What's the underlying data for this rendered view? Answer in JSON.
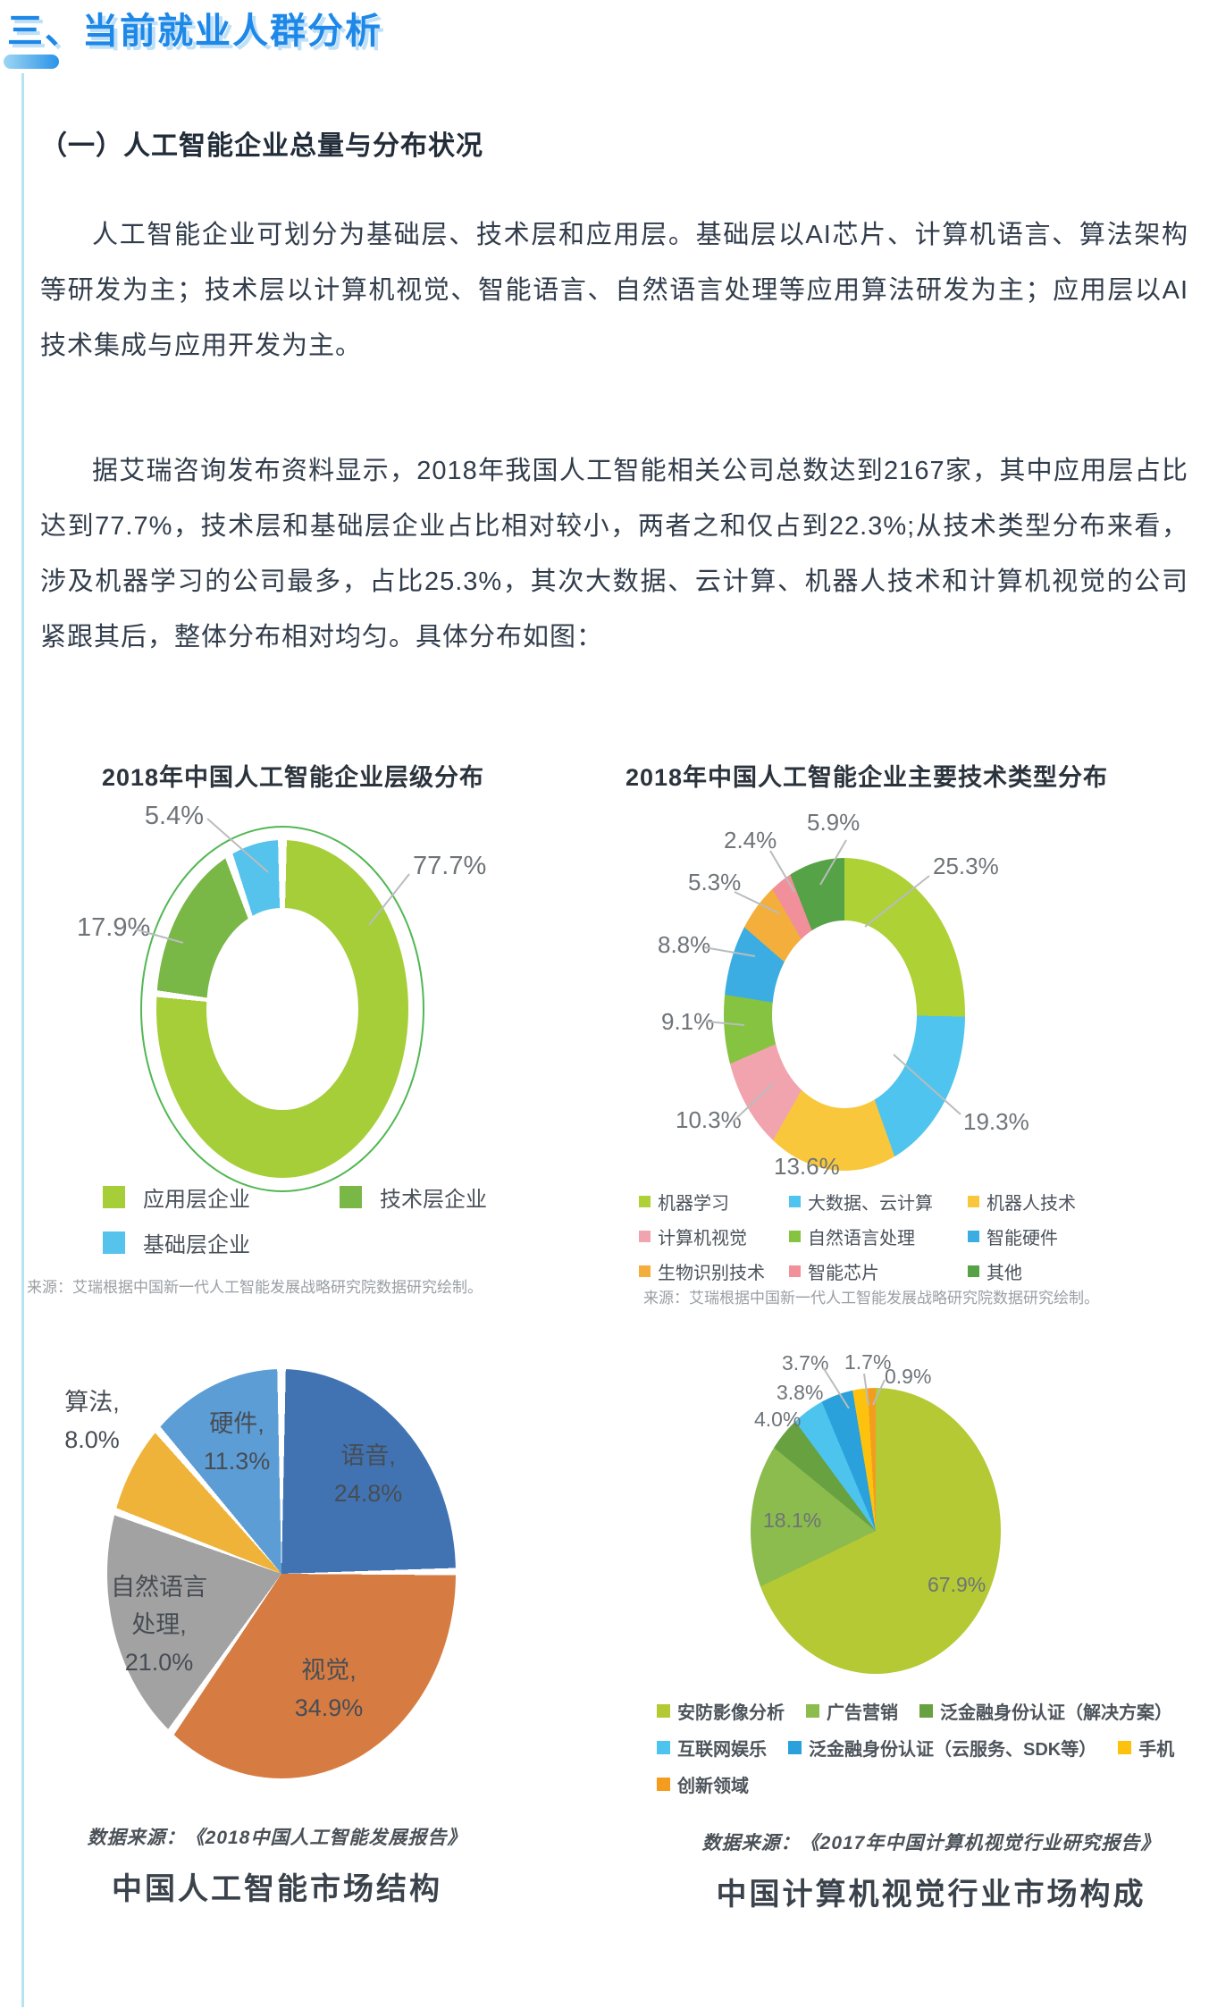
{
  "page": {
    "section_title": "三、当前就业人群分析",
    "subsection_title": "（一）人工智能企业总量与分布状况",
    "paragraphs": [
      "人工智能企业可划分为基础层、技术层和应用层。基础层以AI芯片、计算机语言、算法架构等研发为主；技术层以计算机视觉、智能语言、自然语言处理等应用算法研发为主；应用层以AI技术集成与应用开发为主。",
      "据艾瑞咨询发布资料显示，2018年我国人工智能相关公司总数达到2167家，其中应用层占比达到77.7%，技术层和基础层企业占比相对较小，两者之和仅占到22.3%;从技术类型分布来看，涉及机器学习的公司最多，占比25.3%，其次大数据、云计算、机器人技术和计算机视觉的公司紧跟其后，整体分布相对均匀。具体分布如图："
    ]
  },
  "chart_data": [
    {
      "type": "pie",
      "subtype": "donut",
      "title": "2018年中国人工智能企业层级分布",
      "legend_position": "bottom",
      "series": [
        {
          "label": "应用层企业",
          "value": 77.7,
          "pct": "77.7%",
          "color": "#a6ce39"
        },
        {
          "label": "技术层企业",
          "value": 17.9,
          "pct": "17.9%",
          "color": "#79b746"
        },
        {
          "label": "基础层企业",
          "value": 5.4,
          "pct": "5.4%",
          "color": "#55c3ec"
        }
      ],
      "source": "来源：艾瑞根据中国新一代人工智能发展战略研究院数据研究绘制。"
    },
    {
      "type": "pie",
      "subtype": "donut",
      "title": "2018年中国人工智能企业主要技术类型分布",
      "legend_position": "bottom",
      "series": [
        {
          "label": "机器学习",
          "value": 25.3,
          "pct": "25.3%",
          "color": "#aed136"
        },
        {
          "label": "大数据、云计算",
          "value": 19.3,
          "pct": "19.3%",
          "color": "#4fc4ee"
        },
        {
          "label": "机器人技术",
          "value": 13.6,
          "pct": "13.6%",
          "color": "#f9c73c"
        },
        {
          "label": "计算机视觉",
          "value": 10.3,
          "pct": "10.3%",
          "color": "#f2a4ae"
        },
        {
          "label": "自然语言处理",
          "value": 9.1,
          "pct": "9.1%",
          "color": "#85c341"
        },
        {
          "label": "智能硬件",
          "value": 8.8,
          "pct": "8.8%",
          "color": "#3bade3"
        },
        {
          "label": "生物识别技术",
          "value": 5.3,
          "pct": "5.3%",
          "color": "#f3ae3b"
        },
        {
          "label": "智能芯片",
          "value": 2.4,
          "pct": "2.4%",
          "color": "#f18f9b"
        },
        {
          "label": "其他",
          "value": 5.9,
          "pct": "5.9%",
          "color": "#55a346"
        }
      ],
      "source": "来源：艾瑞根据中国新一代人工智能发展战略研究院数据研究绘制。"
    },
    {
      "type": "pie",
      "subtype": "pie",
      "series": [
        {
          "label": "语音",
          "value": 24.8,
          "pct": "24.8%",
          "color": "#4173b3"
        },
        {
          "label": "视觉",
          "value": 34.9,
          "pct": "34.9%",
          "color": "#d67c42"
        },
        {
          "label": "自然语言处理",
          "value": 21.0,
          "pct": "21.0%",
          "color": "#a2a2a2"
        },
        {
          "label": "算法",
          "value": 8.0,
          "pct": "8.0%",
          "color": "#efb33a"
        },
        {
          "label": "硬件",
          "value": 11.3,
          "pct": "11.3%",
          "color": "#5d9dd5"
        }
      ],
      "source": "数据来源：《2018中国人工智能发展报告》",
      "caption": "中国人工智能市场结构"
    },
    {
      "type": "pie",
      "subtype": "pie",
      "legend_position": "bottom",
      "series": [
        {
          "label": "安防影像分析",
          "value": 67.9,
          "pct": "67.9%",
          "color": "#b4c934"
        },
        {
          "label": "广告营销",
          "value": 18.1,
          "pct": "18.1%",
          "color": "#8cbb4e"
        },
        {
          "label": "泛金融身份认证（解决方案）",
          "value": 4.0,
          "pct": "4.0%",
          "color": "#67a140"
        },
        {
          "label": "互联网娱乐",
          "value": 3.8,
          "pct": "3.8%",
          "color": "#4cc4ee"
        },
        {
          "label": "泛金融身份认证（云服务、SDK等）",
          "value": 3.7,
          "pct": "3.7%",
          "color": "#2aa1db"
        },
        {
          "label": "手机",
          "value": 1.7,
          "pct": "1.7%",
          "color": "#fdc20e"
        },
        {
          "label": "创新领域",
          "value": 0.9,
          "pct": "0.9%",
          "color": "#f49c1e"
        }
      ],
      "source": "数据来源：《2017年中国计算机视觉行业研究报告》",
      "caption": "中国计算机视觉行业市场构成"
    }
  ]
}
